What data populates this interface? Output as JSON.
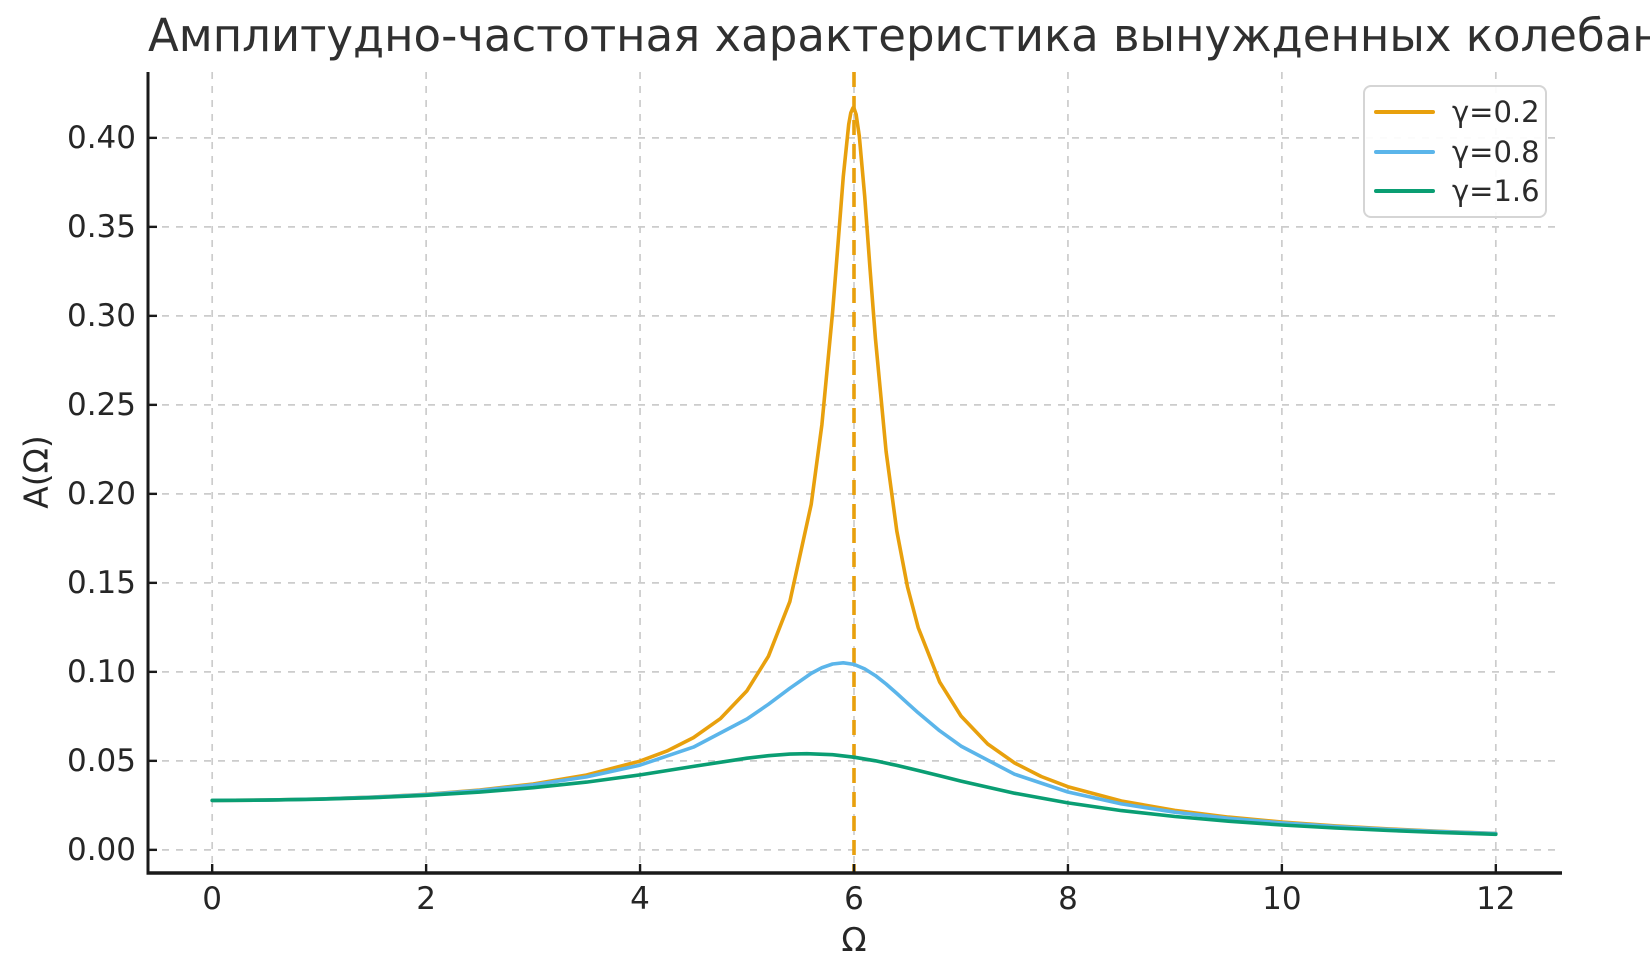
{
  "figure": {
    "background": "#ffffff",
    "text_color": "#262626",
    "spine_color": "#1a1a1a",
    "grid_color": "#cccccc"
  },
  "chart_data": {
    "type": "line",
    "title": "Амплитудно-частотная характеристика вынужденных колебаний",
    "xlabel": "Ω",
    "ylabel": "A(Ω)",
    "xlim": [
      -0.6,
      12.6
    ],
    "ylim": [
      -0.013,
      0.437
    ],
    "grid": "dashed, both axes",
    "legend_position": "upper right",
    "xticks": {
      "values": [
        0,
        2,
        4,
        6,
        8,
        10,
        12
      ],
      "labels": [
        "0",
        "2",
        "4",
        "6",
        "8",
        "10",
        "12"
      ]
    },
    "yticks": {
      "values": [
        0.0,
        0.05,
        0.1,
        0.15,
        0.2,
        0.25,
        0.3,
        0.35,
        0.4
      ],
      "labels": [
        "0.00",
        "0.05",
        "0.10",
        "0.15",
        "0.20",
        "0.25",
        "0.30",
        "0.35",
        "0.40"
      ]
    },
    "annotations": [
      {
        "type": "vline",
        "x": 6,
        "color": "#E8A00D",
        "style": "dashed"
      }
    ],
    "series": [
      {
        "label": "γ=0.2",
        "color": "#E8A00D",
        "points": [
          [
            0,
            0.02778
          ],
          [
            0.5,
            0.02797
          ],
          [
            1,
            0.02857
          ],
          [
            1.5,
            0.02963
          ],
          [
            2,
            0.03124
          ],
          [
            2.5,
            0.03359
          ],
          [
            3,
            0.037
          ],
          [
            3.5,
            0.04203
          ],
          [
            4,
            0.04984
          ],
          [
            4.25,
            0.0555
          ],
          [
            4.5,
            0.06308
          ],
          [
            4.75,
            0.07369
          ],
          [
            5,
            0.08944
          ],
          [
            5.2,
            0.10872
          ],
          [
            5.4,
            0.13941
          ],
          [
            5.6,
            0.19407
          ],
          [
            5.7,
            0.23892
          ],
          [
            5.8,
            0.30217
          ],
          [
            5.85,
            0.3403
          ],
          [
            5.9,
            0.37836
          ],
          [
            5.95,
            0.40752
          ],
          [
            5.97,
            0.4141
          ],
          [
            5.99,
            0.41684
          ],
          [
            5.993,
            0.4169
          ],
          [
            6,
            0.41667
          ],
          [
            6.02,
            0.41323
          ],
          [
            6.05,
            0.40098
          ],
          [
            6.1,
            0.36717
          ],
          [
            6.15,
            0.32663
          ],
          [
            6.2,
            0.28743
          ],
          [
            6.3,
            0.22379
          ],
          [
            6.4,
            0.17916
          ],
          [
            6.5,
            0.14773
          ],
          [
            6.6,
            0.12488
          ],
          [
            6.8,
            0.09438
          ],
          [
            7,
            0.0752
          ],
          [
            7.25,
            0.05947
          ],
          [
            7.5,
            0.04885
          ],
          [
            7.75,
            0.04122
          ],
          [
            8,
            0.03548
          ],
          [
            8.5,
            0.02747
          ],
          [
            9,
            0.02215
          ],
          [
            9.5,
            0.01839
          ],
          [
            10,
            0.0156
          ],
          [
            10.5,
            0.01345
          ],
          [
            11,
            0.01175
          ],
          [
            11.5,
            0.01038
          ],
          [
            12,
            0.00925
          ]
        ]
      },
      {
        "label": "γ=0.8",
        "color": "#5BB5EA",
        "points": [
          [
            0,
            0.02778
          ],
          [
            0.5,
            0.02797
          ],
          [
            1,
            0.02854
          ],
          [
            1.5,
            0.02956
          ],
          [
            2,
            0.0311
          ],
          [
            2.5,
            0.03331
          ],
          [
            3,
            0.03647
          ],
          [
            3.5,
            0.04098
          ],
          [
            4,
            0.04762
          ],
          [
            4.5,
            0.05774
          ],
          [
            5,
            0.07352
          ],
          [
            5.2,
            0.08179
          ],
          [
            5.4,
            0.09074
          ],
          [
            5.6,
            0.09911
          ],
          [
            5.7,
            0.10233
          ],
          [
            5.8,
            0.10443
          ],
          [
            5.9,
            0.1051
          ],
          [
            6,
            0.10417
          ],
          [
            6.1,
            0.10168
          ],
          [
            6.2,
            0.09789
          ],
          [
            6.3,
            0.09316
          ],
          [
            6.4,
            0.08789
          ],
          [
            6.5,
            0.08242
          ],
          [
            6.6,
            0.077
          ],
          [
            6.8,
            0.06693
          ],
          [
            7,
            0.05828
          ],
          [
            7.5,
            0.04248
          ],
          [
            8,
            0.03248
          ],
          [
            8.5,
            0.02583
          ],
          [
            9,
            0.02117
          ],
          [
            9.5,
            0.01775
          ],
          [
            10,
            0.01516
          ],
          [
            10.5,
            0.01314
          ],
          [
            11,
            0.01152
          ],
          [
            11.5,
            0.01021
          ],
          [
            12,
            0.00912
          ]
        ]
      },
      {
        "label": "γ=1.6",
        "color": "#0A9E73",
        "points": [
          [
            0,
            0.02778
          ],
          [
            0.5,
            0.02794
          ],
          [
            1,
            0.02845
          ],
          [
            1.5,
            0.02933
          ],
          [
            2,
            0.03064
          ],
          [
            2.5,
            0.03246
          ],
          [
            3,
            0.0349
          ],
          [
            3.5,
            0.03808
          ],
          [
            4,
            0.04211
          ],
          [
            4.5,
            0.04686
          ],
          [
            5,
            0.0515
          ],
          [
            5.2,
            0.05291
          ],
          [
            5.4,
            0.05381
          ],
          [
            5.56,
            0.05404
          ],
          [
            5.8,
            0.05345
          ],
          [
            6,
            0.05208
          ],
          [
            6.2,
            0.05003
          ],
          [
            6.4,
            0.04746
          ],
          [
            6.6,
            0.04458
          ],
          [
            6.8,
            0.04158
          ],
          [
            7,
            0.03861
          ],
          [
            7.5,
            0.03185
          ],
          [
            8,
            0.02636
          ],
          [
            8.5,
            0.02207
          ],
          [
            9,
            0.01872
          ],
          [
            9.5,
            0.01608
          ],
          [
            10,
            0.01398
          ],
          [
            10.5,
            0.01227
          ],
          [
            11,
            0.01087
          ],
          [
            11.5,
            0.0097
          ],
          [
            12,
            0.00872
          ]
        ]
      }
    ]
  }
}
